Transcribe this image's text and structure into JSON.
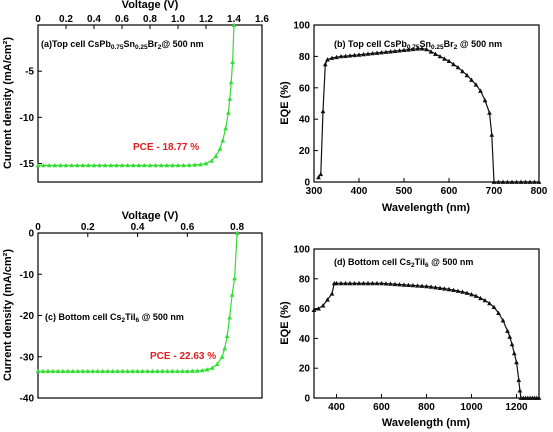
{
  "colors": {
    "jv": "#33dd33",
    "eqe": "#111111",
    "pce": "#e02020"
  },
  "chart_data": [
    {
      "id": "a",
      "type": "line",
      "annotation": {
        "prefix": "(a)Top cell CsPb",
        "sub1": "0.75",
        "mid1": "Sn",
        "sub2": "0.25",
        "mid2": "Br",
        "sub3": "2",
        "suffix": "@ 500 nm"
      },
      "pce_label": "PCE - 18.77 %",
      "xlabel": "Voltage (V)",
      "ylabel": "Current density (mA/cm²)",
      "x_axis_position": "top",
      "xlim": [
        0,
        1.6
      ],
      "ylim": [
        -17,
        0
      ],
      "xticks": [
        0,
        0.2,
        0.4,
        0.6,
        0.8,
        1.0,
        1.2,
        1.4,
        1.6
      ],
      "xtick_labels": [
        "0",
        "0.2",
        "0.4",
        "0.6",
        "0.8",
        "1.0",
        "1.2",
        "1.4",
        "1.6"
      ],
      "yticks": [
        -15,
        -10,
        -5
      ],
      "ytick_labels": [
        "-15",
        "-10",
        "-5"
      ],
      "marker": "triangle",
      "x": [
        0,
        0.04,
        0.08,
        0.12,
        0.16,
        0.2,
        0.24,
        0.28,
        0.32,
        0.36,
        0.4,
        0.44,
        0.48,
        0.52,
        0.56,
        0.6,
        0.64,
        0.68,
        0.72,
        0.76,
        0.8,
        0.84,
        0.88,
        0.92,
        0.96,
        1.0,
        1.04,
        1.08,
        1.12,
        1.16,
        1.2,
        1.24,
        1.27,
        1.3,
        1.32,
        1.34,
        1.36,
        1.37,
        1.38,
        1.39,
        1.4
      ],
      "y": [
        -15.2,
        -15.2,
        -15.2,
        -15.2,
        -15.2,
        -15.2,
        -15.2,
        -15.2,
        -15.2,
        -15.2,
        -15.2,
        -15.2,
        -15.2,
        -15.2,
        -15.2,
        -15.2,
        -15.2,
        -15.2,
        -15.2,
        -15.2,
        -15.2,
        -15.2,
        -15.2,
        -15.2,
        -15.2,
        -15.2,
        -15.19,
        -15.18,
        -15.15,
        -15.1,
        -15.0,
        -14.7,
        -14.2,
        -13.4,
        -12.5,
        -11.2,
        -9.5,
        -8.0,
        -6.2,
        -4.0,
        0
      ]
    },
    {
      "id": "b",
      "type": "line",
      "annotation": {
        "prefix": "(b) Top cell CsPb",
        "sub1": "0.75",
        "mid1": "Sn",
        "sub2": "0.25",
        "mid2": "Br",
        "sub3": "2",
        "suffix": " @ 500 nm"
      },
      "xlabel": "Wavelength (nm)",
      "ylabel": "EQE (%)",
      "x_axis_position": "bottom",
      "xlim": [
        300,
        800
      ],
      "ylim": [
        0,
        100
      ],
      "xticks": [
        300,
        400,
        500,
        600,
        700,
        800
      ],
      "xtick_labels": [
        "300",
        "400",
        "500",
        "600",
        "700",
        "800"
      ],
      "yticks": [
        0,
        20,
        40,
        60,
        80,
        100
      ],
      "ytick_labels": [
        "0",
        "20",
        "40",
        "60",
        "80",
        "100"
      ],
      "marker": "triangle",
      "x": [
        310,
        315,
        320,
        325,
        330,
        340,
        350,
        360,
        370,
        380,
        390,
        400,
        410,
        420,
        430,
        440,
        450,
        460,
        470,
        480,
        490,
        500,
        510,
        520,
        530,
        540,
        550,
        560,
        570,
        580,
        590,
        600,
        610,
        620,
        630,
        640,
        650,
        660,
        670,
        680,
        690,
        695,
        700,
        710,
        720,
        730,
        740,
        750,
        760,
        770,
        780,
        790,
        800
      ],
      "y": [
        3,
        5,
        45,
        75,
        78,
        79,
        79.5,
        80,
        80.2,
        80.5,
        80.8,
        81,
        81.3,
        81.6,
        81.9,
        82.2,
        82.5,
        82.8,
        83.1,
        83.4,
        83.7,
        84,
        84.3,
        84.6,
        84.9,
        85,
        84.5,
        83,
        81.5,
        80,
        78.5,
        77,
        75,
        73,
        70.5,
        68,
        65,
        62,
        58,
        52,
        44,
        30,
        0,
        0,
        0,
        0,
        0,
        0,
        0,
        0,
        0,
        0,
        0
      ]
    },
    {
      "id": "c",
      "type": "line",
      "annotation": {
        "prefix": "(c) Bottom cell Cs",
        "sub1": "2",
        "mid1": "TiI",
        "sub2": "6",
        "mid2": "",
        "sub3": "",
        "suffix": " @ 500 nm"
      },
      "pce_label": "PCE - 22.63 %",
      "xlabel": "Voltage (V)",
      "ylabel": "Current density (mA/cm²)",
      "x_axis_position": "top",
      "xlim": [
        0,
        0.9
      ],
      "ylim": [
        -40,
        0
      ],
      "xticks": [
        0,
        0.2,
        0.4,
        0.6,
        0.8
      ],
      "xtick_labels": [
        "0",
        "0.2",
        "0.4",
        "0.6",
        "0.8"
      ],
      "yticks": [
        -40,
        -30,
        -20,
        -10,
        0
      ],
      "ytick_labels": [
        "-40",
        "-30",
        "-20",
        "-10",
        "0"
      ],
      "marker": "triangle",
      "x": [
        0,
        0.02,
        0.04,
        0.06,
        0.08,
        0.1,
        0.12,
        0.14,
        0.16,
        0.18,
        0.2,
        0.22,
        0.24,
        0.26,
        0.28,
        0.3,
        0.32,
        0.34,
        0.36,
        0.38,
        0.4,
        0.42,
        0.44,
        0.46,
        0.48,
        0.5,
        0.52,
        0.54,
        0.56,
        0.58,
        0.6,
        0.62,
        0.64,
        0.66,
        0.68,
        0.7,
        0.72,
        0.74,
        0.75,
        0.76,
        0.77,
        0.78,
        0.79,
        0.8
      ],
      "y": [
        -33.5,
        -33.5,
        -33.5,
        -33.5,
        -33.5,
        -33.5,
        -33.5,
        -33.5,
        -33.5,
        -33.5,
        -33.5,
        -33.5,
        -33.5,
        -33.5,
        -33.5,
        -33.5,
        -33.5,
        -33.5,
        -33.5,
        -33.5,
        -33.5,
        -33.5,
        -33.5,
        -33.5,
        -33.5,
        -33.5,
        -33.5,
        -33.5,
        -33.5,
        -33.5,
        -33.5,
        -33.45,
        -33.4,
        -33.3,
        -33.1,
        -32.7,
        -31.8,
        -30.0,
        -28.0,
        -25.0,
        -20.5,
        -15.0,
        -11.0,
        0
      ]
    },
    {
      "id": "d",
      "type": "line",
      "annotation": {
        "prefix": "(d) Bottom cell Cs",
        "sub1": "2",
        "mid1": "TiI",
        "sub2": "6",
        "mid2": "",
        "sub3": "",
        "suffix": " @ 500 nm"
      },
      "xlabel": "Wavelength (nm)",
      "ylabel": "EQE (%)",
      "x_axis_position": "bottom",
      "xlim": [
        300,
        1300
      ],
      "ylim": [
        0,
        100
      ],
      "xticks": [
        400,
        600,
        800,
        1000,
        1200
      ],
      "xtick_labels": [
        "400",
        "600",
        "800",
        "1000",
        "1200"
      ],
      "yticks": [
        0,
        20,
        40,
        60,
        80,
        100
      ],
      "ytick_labels": [
        "0",
        "20",
        "40",
        "60",
        "80",
        "100"
      ],
      "marker": "triangle",
      "x": [
        300,
        320,
        340,
        360,
        380,
        390,
        400,
        420,
        440,
        460,
        480,
        500,
        520,
        540,
        560,
        580,
        600,
        620,
        640,
        660,
        680,
        700,
        720,
        740,
        760,
        780,
        800,
        820,
        840,
        860,
        880,
        900,
        920,
        940,
        960,
        980,
        1000,
        1020,
        1040,
        1060,
        1080,
        1100,
        1120,
        1140,
        1160,
        1170,
        1180,
        1190,
        1200,
        1210,
        1215,
        1220,
        1230,
        1240,
        1250,
        1260,
        1270,
        1280,
        1290,
        1300
      ],
      "y": [
        59,
        60,
        62,
        66,
        70,
        77,
        77,
        77,
        77,
        77,
        77,
        77,
        77,
        77,
        77,
        77,
        77,
        76.8,
        76.6,
        76.4,
        76.2,
        76,
        75.8,
        75.6,
        75.4,
        75.2,
        75,
        74.6,
        74.2,
        73.8,
        73.4,
        73,
        72.4,
        71.8,
        71.2,
        70.5,
        69.5,
        68.5,
        67,
        65.5,
        63.5,
        61,
        57,
        52,
        45,
        41,
        36,
        30,
        24,
        12,
        5,
        0,
        0,
        0,
        0,
        0,
        0,
        0,
        0,
        0
      ]
    }
  ]
}
